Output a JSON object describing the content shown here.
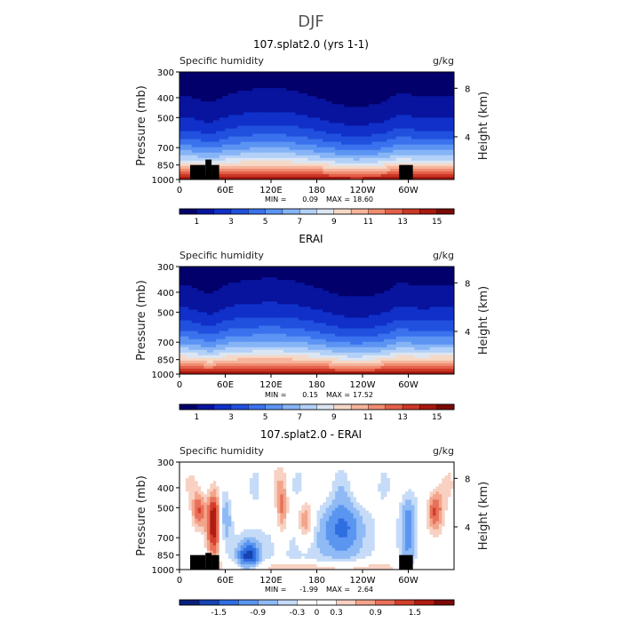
{
  "figure_title": "DJF",
  "chart_data": [
    {
      "type": "heatmap",
      "title": "107.splat2.0 (yrs 1-1)",
      "left_label": "Specific humidity",
      "right_label": "g/kg",
      "ylabel": "Pressure (mb)",
      "y2label": "Height (km)",
      "y_ticks": [
        "300",
        "400",
        "500",
        "700",
        "850",
        "1000"
      ],
      "y_tick_values": [
        300,
        400,
        500,
        700,
        850,
        1000
      ],
      "y2_ticks": [
        "8",
        "4"
      ],
      "x_ticks": [
        "0",
        "60E",
        "120E",
        "180",
        "120W",
        "60W"
      ],
      "x_tick_values": [
        0,
        60,
        120,
        180,
        240,
        300
      ],
      "xlim": [
        0,
        360
      ],
      "ylim": [
        1000,
        300
      ],
      "min_text": "0.09",
      "max_text": "18.60",
      "colorbar_labels": [
        "1",
        "3",
        "5",
        "7",
        "9",
        "11",
        "13",
        "15"
      ],
      "colorbar_range": [
        0,
        16
      ]
    },
    {
      "type": "heatmap",
      "title": "ERAI",
      "left_label": "Specific humidity",
      "right_label": "g/kg",
      "ylabel": "Pressure (mb)",
      "y2label": "Height (km)",
      "y_ticks": [
        "300",
        "400",
        "500",
        "700",
        "850",
        "1000"
      ],
      "y_tick_values": [
        300,
        400,
        500,
        700,
        850,
        1000
      ],
      "y2_ticks": [
        "8",
        "4"
      ],
      "x_ticks": [
        "0",
        "60E",
        "120E",
        "180",
        "120W",
        "60W"
      ],
      "x_tick_values": [
        0,
        60,
        120,
        180,
        240,
        300
      ],
      "xlim": [
        0,
        360
      ],
      "ylim": [
        1000,
        300
      ],
      "min_text": "0.15",
      "max_text": "17.52",
      "colorbar_labels": [
        "1",
        "3",
        "5",
        "7",
        "9",
        "11",
        "13",
        "15"
      ],
      "colorbar_range": [
        0,
        16
      ]
    },
    {
      "type": "heatmap",
      "title": "107.splat2.0 - ERAI",
      "left_label": "Specific humidity",
      "right_label": "g/kg",
      "ylabel": "Pressure (mb)",
      "y2label": "Height (km)",
      "y_ticks": [
        "300",
        "400",
        "500",
        "700",
        "850",
        "1000"
      ],
      "y_tick_values": [
        300,
        400,
        500,
        700,
        850,
        1000
      ],
      "y2_ticks": [
        "8",
        "4"
      ],
      "x_ticks": [
        "0",
        "60E",
        "120E",
        "180",
        "120W",
        "60W"
      ],
      "x_tick_values": [
        0,
        60,
        120,
        180,
        240,
        300
      ],
      "xlim": [
        0,
        360
      ],
      "ylim": [
        1000,
        300
      ],
      "min_text": "-1.99",
      "max_text": "2.64",
      "colorbar_labels": [
        "-1.5",
        "-0.9",
        "-0.3",
        "0",
        "0.3",
        "0.9",
        "1.5"
      ],
      "colorbar_range": [
        -2,
        2
      ]
    }
  ],
  "colors": {
    "sequential": [
      "#03006b",
      "#08149e",
      "#1030c9",
      "#2150de",
      "#3a72ee",
      "#5c94f3",
      "#86b4f6",
      "#b3d1f8",
      "#dce6f2",
      "#f6d8c6",
      "#f6b49b",
      "#f08c70",
      "#e4604a",
      "#cc3826",
      "#a8190f",
      "#7a0a05"
    ],
    "diverging": [
      "#08207a",
      "#1744b2",
      "#2f6ee0",
      "#5a96f0",
      "#8fbaf5",
      "#c5dbf8",
      "#ffffff",
      "#ffffff",
      "#f8d1c2",
      "#f3a48a",
      "#e9705a",
      "#d43f2a",
      "#b01c10",
      "#7a0a05"
    ],
    "topography": "#000000"
  }
}
